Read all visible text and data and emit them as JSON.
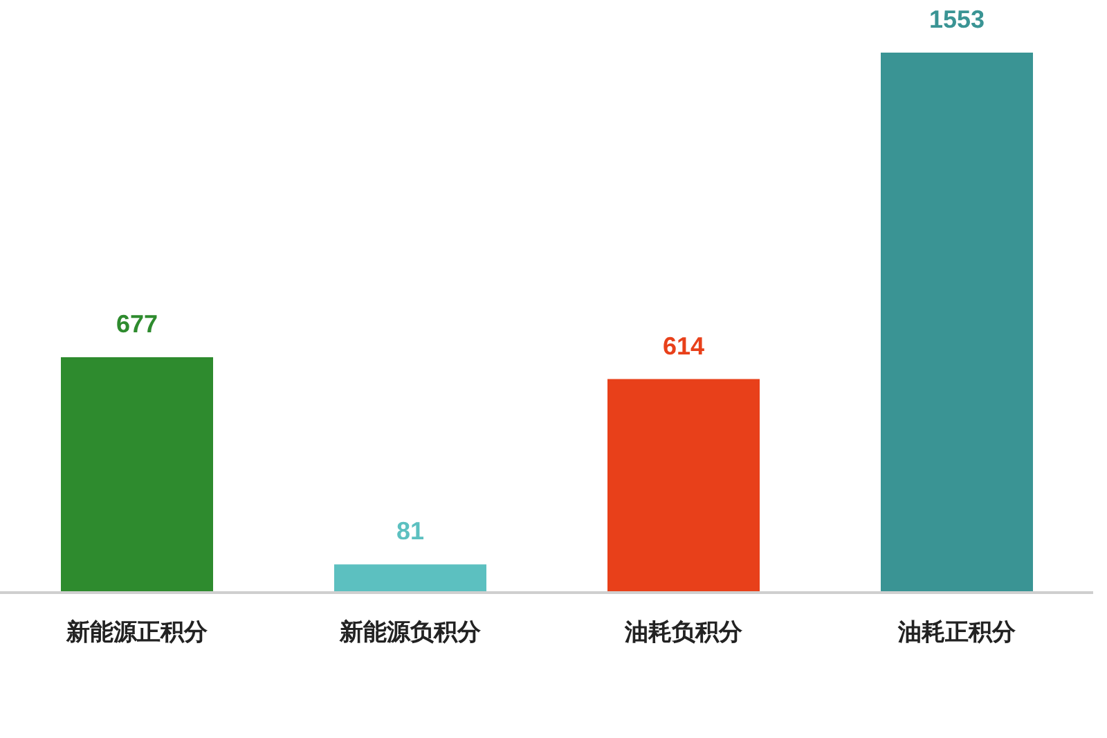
{
  "chart_data": {
    "type": "bar",
    "categories": [
      "新能源正积分",
      "新能源负积分",
      "油耗负积分",
      "油耗正积分"
    ],
    "values": [
      677,
      81,
      614,
      1553
    ],
    "colors": [
      "#2e8b2e",
      "#5cc0c0",
      "#e8401a",
      "#3a9494"
    ],
    "data_labels": true
  }
}
